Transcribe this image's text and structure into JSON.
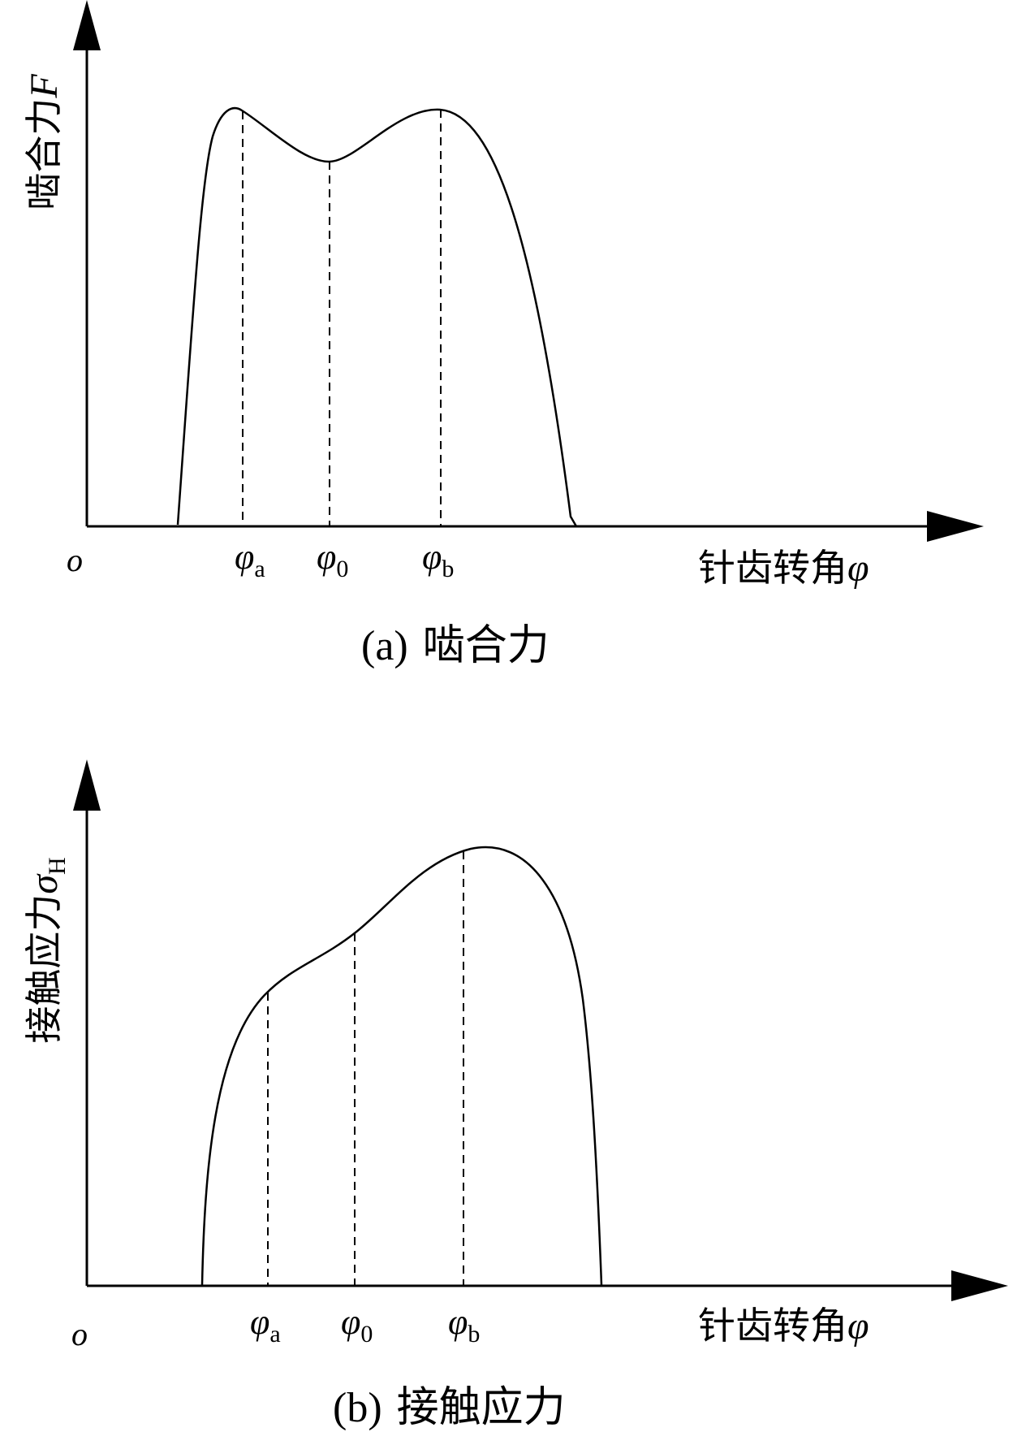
{
  "panels": [
    {
      "id": "a",
      "caption_label": "(a)",
      "caption_title": "啮合力",
      "y_axis_label": "啮合力",
      "y_axis_symbol": "F",
      "y_axis_subscript": "",
      "x_axis_label": "针齿转角",
      "x_axis_symbol": "φ",
      "origin_label": "o",
      "markers": [
        {
          "symbol": "φ",
          "sub": "a"
        },
        {
          "symbol": "φ",
          "sub": "0"
        },
        {
          "symbol": "φ",
          "sub": "b"
        }
      ]
    },
    {
      "id": "b",
      "caption_label": "(b)",
      "caption_title": "接触应力",
      "y_axis_label": "接触应力",
      "y_axis_symbol": "σ",
      "y_axis_subscript": "H",
      "x_axis_label": "针齿转角",
      "x_axis_symbol": "φ",
      "origin_label": "o",
      "markers": [
        {
          "symbol": "φ",
          "sub": "a"
        },
        {
          "symbol": "φ",
          "sub": "0"
        },
        {
          "symbol": "φ",
          "sub": "b"
        }
      ]
    }
  ]
}
